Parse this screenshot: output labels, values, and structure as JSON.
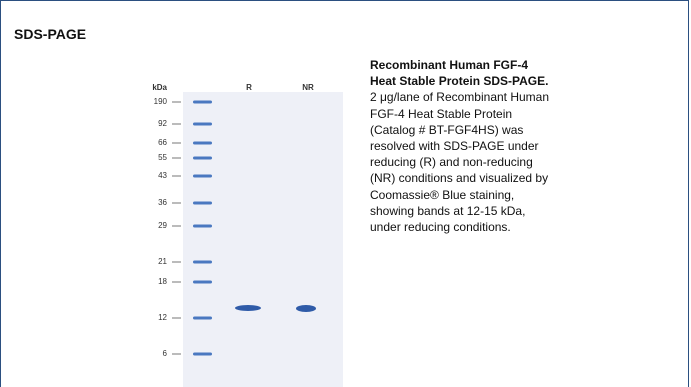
{
  "header": {
    "title": "SDS-PAGE"
  },
  "gel": {
    "unit_label": "kDa",
    "lanes": [
      "R",
      "NR"
    ],
    "markers": [
      "190",
      "92",
      "66",
      "55",
      "43",
      "36",
      "29",
      "21",
      "18",
      "12",
      "6"
    ]
  },
  "caption": {
    "title_lines": [
      "Recombinant Human FGF-4",
      "Heat Stable Protein SDS-PAGE."
    ],
    "body_lines": [
      "2 μg/lane of Recombinant Human",
      "FGF-4 Heat Stable Protein",
      "(Catalog # BT-FGF4HS) was",
      "resolved with SDS-PAGE under",
      "reducing (R) and non-reducing",
      "(NR) conditions and visualized by",
      "Coomassie® Blue staining,",
      "showing bands at 12-15 kDa,",
      "under reducing conditions."
    ]
  }
}
